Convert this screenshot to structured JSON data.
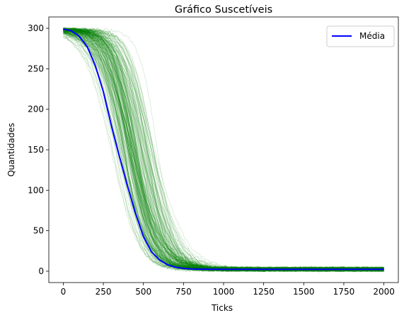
{
  "chart_data": {
    "type": "line",
    "title": "Gráfico Suscetíveis",
    "xlabel": "Ticks",
    "ylabel": "Quantidades",
    "xlim": [
      -90,
      2090
    ],
    "ylim": [
      -14,
      314
    ],
    "xticks": [
      0,
      250,
      500,
      750,
      1000,
      1250,
      1500,
      1750,
      2000
    ],
    "yticks": [
      0,
      50,
      100,
      150,
      200,
      250,
      300
    ],
    "grid": false,
    "legend_position": "top-right",
    "colors": {
      "mean": "#0000ff",
      "runs": "#008000"
    },
    "series": [
      {
        "name": "Média",
        "x": [
          0,
          50,
          100,
          150,
          200,
          250,
          300,
          350,
          400,
          450,
          500,
          550,
          600,
          650,
          700,
          750,
          800,
          900,
          1000,
          1250,
          1500,
          1750,
          2000
        ],
        "values": [
          299,
          297,
          290,
          277,
          254,
          222,
          180,
          142,
          106,
          72,
          43,
          24,
          14,
          8,
          5,
          3.5,
          2.8,
          2.5,
          2.4,
          2.4,
          2.4,
          2.4,
          2.4
        ]
      }
    ],
    "individual_runs": {
      "count": 200,
      "description_shape": "sigmoid decline from 299 to about 2–3, midpoints spread roughly 220–650 ticks"
    }
  }
}
